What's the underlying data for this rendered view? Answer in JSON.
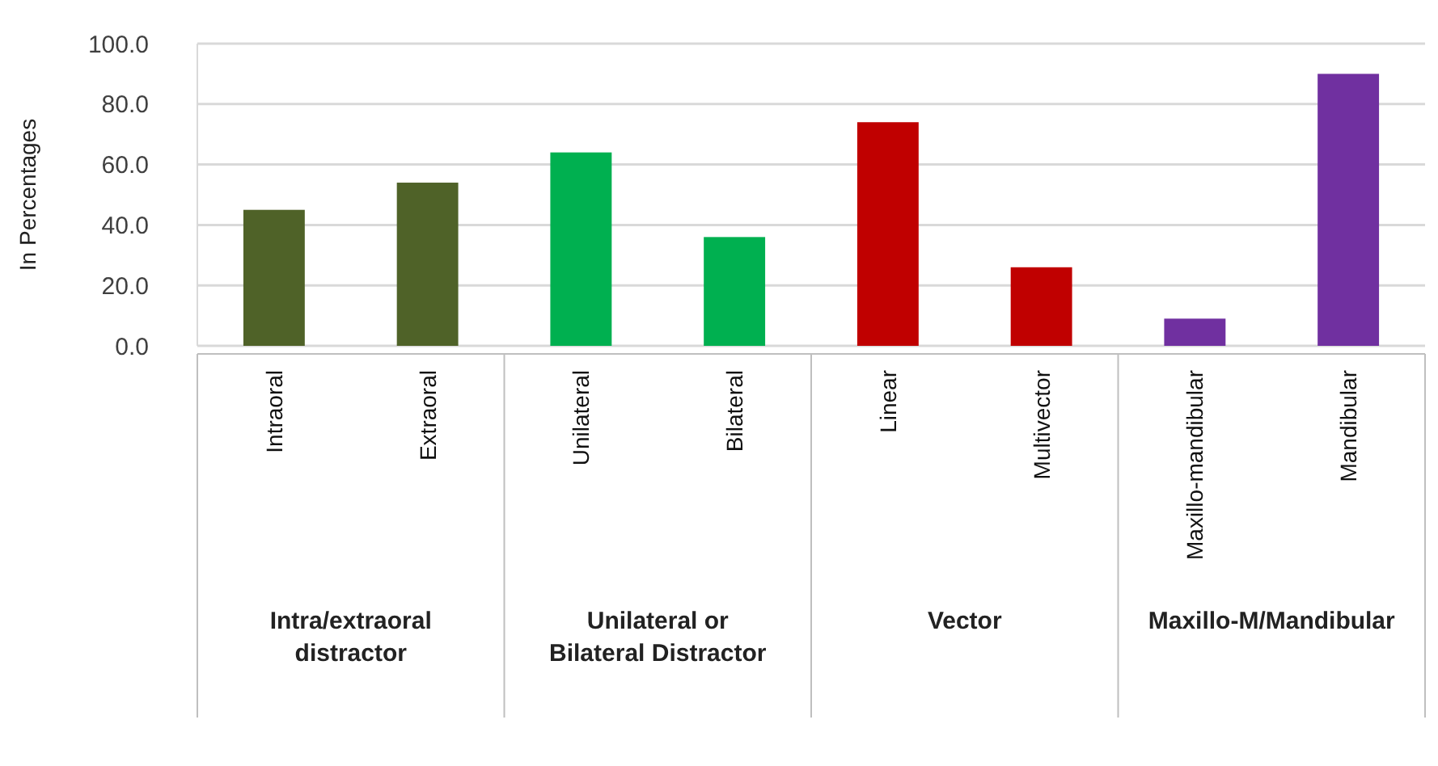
{
  "chart_data": {
    "type": "bar",
    "ylabel": "In Percentages",
    "categories": [
      "Intraoral",
      "Extraoral",
      "Unilateral",
      "Bilateral",
      "Linear",
      "Multivector",
      "Maxillo-mandibular",
      "Mandibular"
    ],
    "values": [
      45,
      54,
      64,
      36,
      74,
      26,
      9,
      90
    ],
    "colors": [
      "#4f6228",
      "#4f6228",
      "#00b050",
      "#00b050",
      "#c00000",
      "#c00000",
      "#7030a0",
      "#7030a0"
    ],
    "ylim": [
      0,
      100
    ],
    "yticks": [
      {
        "value": 0,
        "label": "0.0"
      },
      {
        "value": 20,
        "label": "20.0"
      },
      {
        "value": 40,
        "label": "40.0"
      },
      {
        "value": 60,
        "label": "60.0"
      },
      {
        "value": 80,
        "label": "80.0"
      },
      {
        "value": 100,
        "label": "100.0"
      }
    ],
    "grid": "y",
    "annotations": [
      "Intra/extraoral distractor",
      "Unilateral or Bilateral Distractor",
      "Vector",
      "Maxillo-M/Mandibular"
    ]
  }
}
